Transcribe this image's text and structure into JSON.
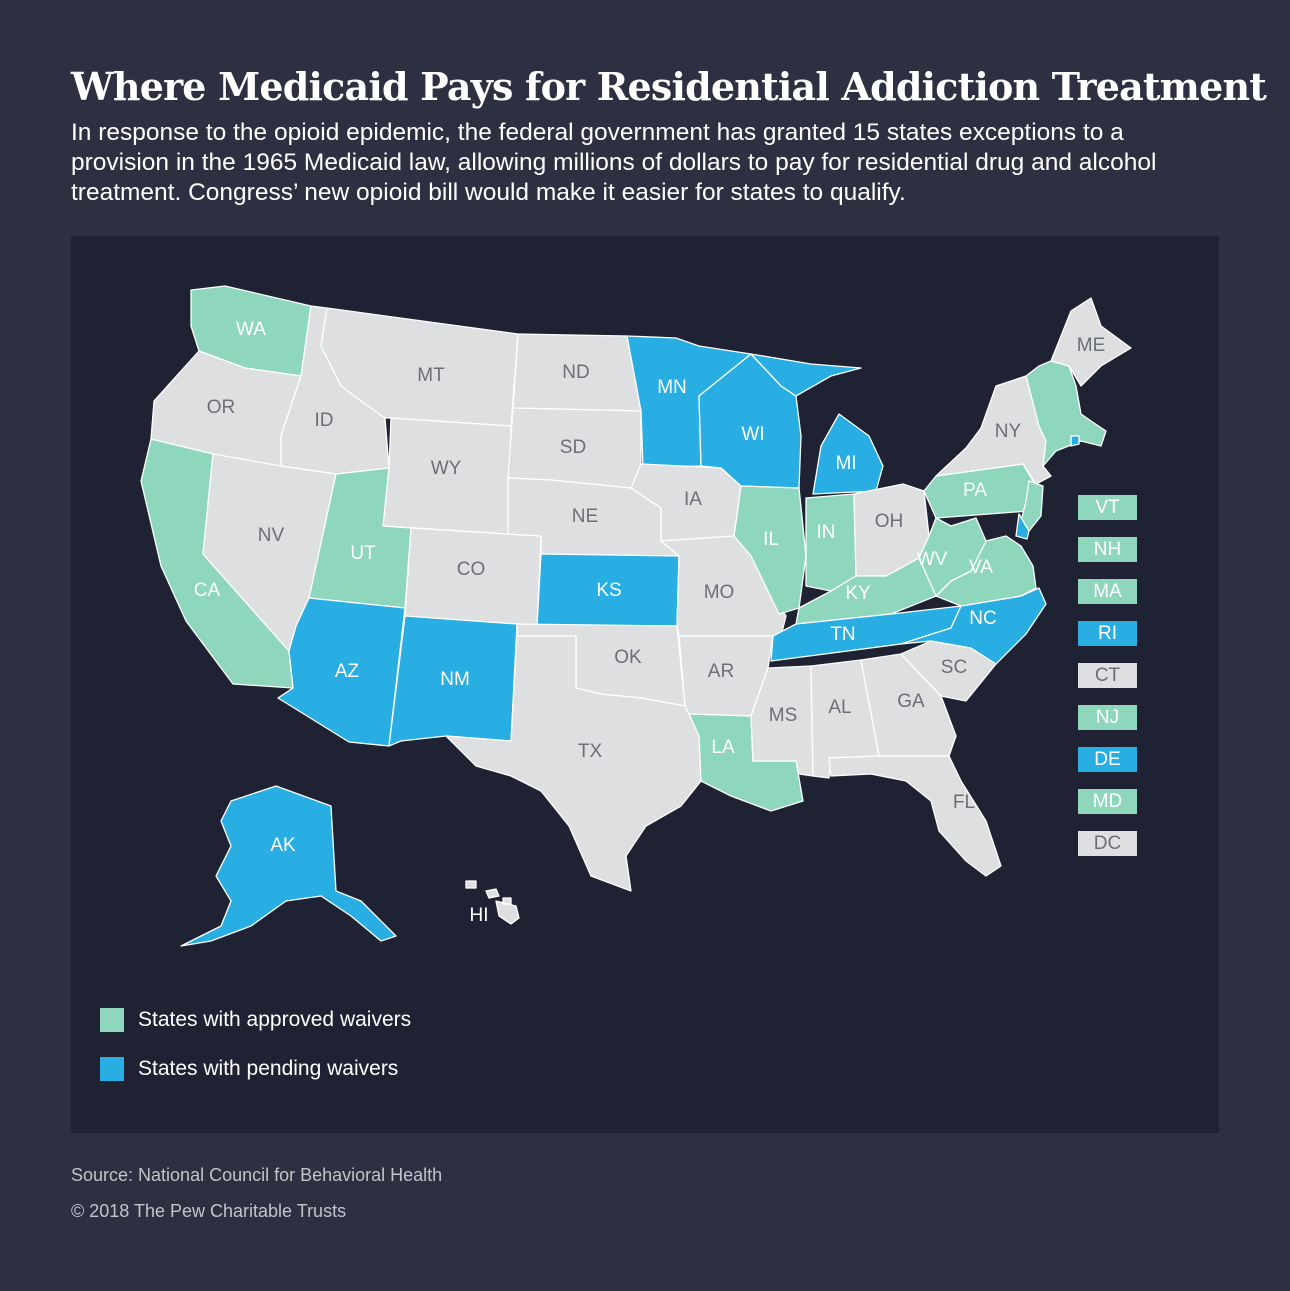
{
  "title": "Where Medicaid Pays for Residential Addiction Treatment",
  "subtitle": "In response to the opioid epidemic, the federal government has granted 15 states exceptions to a provision in the 1965 Medicaid law, allowing millions of dollars to pay for residential drug and alcohol treatment. Congress’ new opioid bill would make it easier for states to qualify.",
  "colors": {
    "approved": "#8fd7bc",
    "pending": "#29aee3",
    "none": "#dedfe1",
    "panel": "#1f2232",
    "background": "#2d3040"
  },
  "states": [
    {
      "abbr": "WA",
      "status": "approved"
    },
    {
      "abbr": "OR",
      "status": "none"
    },
    {
      "abbr": "CA",
      "status": "approved"
    },
    {
      "abbr": "ID",
      "status": "none"
    },
    {
      "abbr": "NV",
      "status": "none"
    },
    {
      "abbr": "MT",
      "status": "none"
    },
    {
      "abbr": "WY",
      "status": "none"
    },
    {
      "abbr": "UT",
      "status": "approved"
    },
    {
      "abbr": "AZ",
      "status": "pending"
    },
    {
      "abbr": "CO",
      "status": "none"
    },
    {
      "abbr": "NM",
      "status": "pending"
    },
    {
      "abbr": "ND",
      "status": "none"
    },
    {
      "abbr": "SD",
      "status": "none"
    },
    {
      "abbr": "NE",
      "status": "none"
    },
    {
      "abbr": "KS",
      "status": "pending"
    },
    {
      "abbr": "OK",
      "status": "none"
    },
    {
      "abbr": "TX",
      "status": "none"
    },
    {
      "abbr": "MN",
      "status": "pending"
    },
    {
      "abbr": "IA",
      "status": "none"
    },
    {
      "abbr": "MO",
      "status": "none"
    },
    {
      "abbr": "AR",
      "status": "none"
    },
    {
      "abbr": "LA",
      "status": "approved"
    },
    {
      "abbr": "WI",
      "status": "pending"
    },
    {
      "abbr": "IL",
      "status": "approved"
    },
    {
      "abbr": "MI",
      "status": "pending"
    },
    {
      "abbr": "IN",
      "status": "approved"
    },
    {
      "abbr": "OH",
      "status": "none"
    },
    {
      "abbr": "KY",
      "status": "approved"
    },
    {
      "abbr": "TN",
      "status": "pending"
    },
    {
      "abbr": "MS",
      "status": "none"
    },
    {
      "abbr": "AL",
      "status": "none"
    },
    {
      "abbr": "GA",
      "status": "none"
    },
    {
      "abbr": "FL",
      "status": "none"
    },
    {
      "abbr": "SC",
      "status": "none"
    },
    {
      "abbr": "NC",
      "status": "pending"
    },
    {
      "abbr": "VA",
      "status": "approved"
    },
    {
      "abbr": "WV",
      "status": "approved"
    },
    {
      "abbr": "PA",
      "status": "approved"
    },
    {
      "abbr": "NY",
      "status": "none"
    },
    {
      "abbr": "ME",
      "status": "none"
    },
    {
      "abbr": "AK",
      "status": "pending"
    },
    {
      "abbr": "HI",
      "status": "none"
    }
  ],
  "callouts": [
    {
      "abbr": "VT",
      "status": "approved"
    },
    {
      "abbr": "NH",
      "status": "approved"
    },
    {
      "abbr": "MA",
      "status": "approved"
    },
    {
      "abbr": "RI",
      "status": "pending"
    },
    {
      "abbr": "CT",
      "status": "none"
    },
    {
      "abbr": "NJ",
      "status": "approved"
    },
    {
      "abbr": "DE",
      "status": "pending"
    },
    {
      "abbr": "MD",
      "status": "approved"
    },
    {
      "abbr": "DC",
      "status": "none"
    }
  ],
  "legend": {
    "approved_label": "States with approved waivers",
    "pending_label": "States with pending waivers"
  },
  "source": "Source: National Council for Behavioral Health",
  "copyright": "© 2018 The Pew Charitable Trusts"
}
